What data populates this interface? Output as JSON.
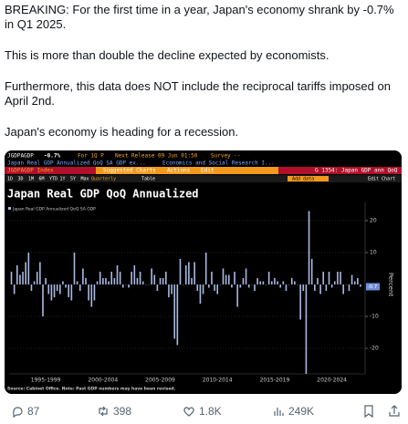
{
  "tweet": {
    "paragraphs": [
      "BREAKING: For the first time in a year, Japan's economy shrank by -0.7% in Q1 2025.",
      "This is more than double the decline expected by economists.",
      "Furthermore, this data does NOT include the reciprocal tariffs imposed on April 2nd.",
      "Japan's economy is heading for a recession."
    ]
  },
  "terminal": {
    "ticker": "JGDPAGDP",
    "last": "-0.7%",
    "period": "For 1Q P",
    "next_release": "Next Release 09 Jun 01:50",
    "survey": "Survey --",
    "description": "Japan Real GDP Annualized QoQ SA GDP ex...",
    "source_org": "Economics and Social Research I...",
    "security": "JGDPAGDP Index",
    "menu": [
      "Suggested Charts",
      "Actions",
      "Edit"
    ],
    "chart_id": "G 1354: Japan GDP ann QoQ",
    "range_buttons": [
      "1D",
      "3D",
      "1M",
      "6M",
      "YTD",
      "1Y",
      "5Y",
      "Max",
      "Quarterly"
    ],
    "table_button": "Table",
    "add_data": "Add data",
    "edit_chart": "Edit Chart"
  },
  "chart_data": {
    "type": "bar",
    "title": "Japan Real GDP QoQ Annualized",
    "series": [
      {
        "name": "Japan Real GDP Annualized QoQ SA GDP",
        "color": "#aab9e2",
        "values": [
          4,
          -3,
          6,
          3,
          4,
          7,
          10,
          -2,
          1,
          4,
          7,
          -10,
          2,
          -3,
          -5,
          -4,
          -2,
          -3,
          1,
          -1,
          -4,
          -5,
          10,
          1,
          -2,
          5,
          2,
          -5,
          -7,
          -5,
          1,
          4,
          2,
          2,
          1,
          4,
          2,
          6,
          4,
          -1,
          0,
          -1,
          4,
          6,
          2,
          4,
          1,
          0,
          0,
          5,
          3,
          -2,
          2,
          2,
          4,
          -4,
          -3,
          -17,
          -19,
          8,
          0,
          6,
          7,
          2,
          7,
          -2,
          -6,
          -3,
          10,
          -1,
          4,
          -2,
          -3,
          0,
          5,
          3,
          3,
          -1,
          4,
          -7,
          -1,
          2,
          5,
          -1,
          0,
          -2,
          2,
          1,
          1,
          0,
          4,
          1,
          2,
          1,
          -1,
          1,
          -2,
          0,
          2,
          1,
          0,
          -11,
          -2,
          -28,
          23,
          8,
          -2,
          2,
          -3,
          4,
          -2,
          4,
          -1,
          1,
          4,
          4,
          -3,
          0,
          -2,
          3,
          1,
          2,
          -0.7
        ]
      }
    ],
    "x": [
      1994.5,
      1994.75,
      1995,
      1995.25,
      1995.5,
      1995.75,
      1996,
      1996.25,
      1996.5,
      1996.75,
      1997,
      1997.25,
      1997.5,
      1997.75,
      1998,
      1998.25,
      1998.5,
      1998.75,
      1999,
      1999.25,
      1999.5,
      1999.75,
      2000,
      2000.25,
      2000.5,
      2000.75,
      2001,
      2001.25,
      2001.5,
      2001.75,
      2002,
      2002.25,
      2002.5,
      2002.75,
      2003,
      2003.25,
      2003.5,
      2003.75,
      2004,
      2004.25,
      2004.5,
      2004.75,
      2005,
      2005.25,
      2005.5,
      2005.75,
      2006,
      2006.25,
      2006.5,
      2006.75,
      2007,
      2007.25,
      2007.5,
      2007.75,
      2008,
      2008.25,
      2008.5,
      2008.75,
      2009,
      2009.25,
      2009.5,
      2009.75,
      2010,
      2010.25,
      2010.5,
      2010.75,
      2011,
      2011.25,
      2011.5,
      2011.75,
      2012,
      2012.25,
      2012.5,
      2012.75,
      2013,
      2013.25,
      2013.5,
      2013.75,
      2014,
      2014.25,
      2014.5,
      2014.75,
      2015,
      2015.25,
      2015.5,
      2015.75,
      2016,
      2016.25,
      2016.5,
      2016.75,
      2017,
      2017.25,
      2017.5,
      2017.75,
      2018,
      2018.25,
      2018.5,
      2018.75,
      2019,
      2019.25,
      2019.5,
      2019.75,
      2020,
      2020.25,
      2020.5,
      2020.75,
      2021,
      2021.25,
      2021.5,
      2021.75,
      2022,
      2022.25,
      2022.5,
      2022.75,
      2023,
      2023.25,
      2023.5,
      2023.75,
      2024,
      2024.25,
      2024.5,
      2024.75,
      2025
    ],
    "xlim": [
      1994.3,
      2025.4
    ],
    "xticks": [
      {
        "value": 1997.5,
        "label": "1995-1999"
      },
      {
        "value": 2002.5,
        "label": "2000-2004"
      },
      {
        "value": 2007.5,
        "label": "2005-2009"
      },
      {
        "value": 2012.5,
        "label": "2010-2014"
      },
      {
        "value": 2017.5,
        "label": "2015-2019"
      },
      {
        "value": 2022.5,
        "label": "2020-2024"
      }
    ],
    "ylim": [
      -28,
      25.7
    ],
    "yticks": [
      -20,
      -10,
      10,
      20
    ],
    "y_label": "Percent",
    "last_label": "-0.7",
    "grid": true,
    "source": "Source: Cabinet Office. Note: Past GDP numbers may have been revised."
  },
  "actions": {
    "replies": "87",
    "reposts": "398",
    "likes": "1.8K",
    "views": "249K"
  }
}
